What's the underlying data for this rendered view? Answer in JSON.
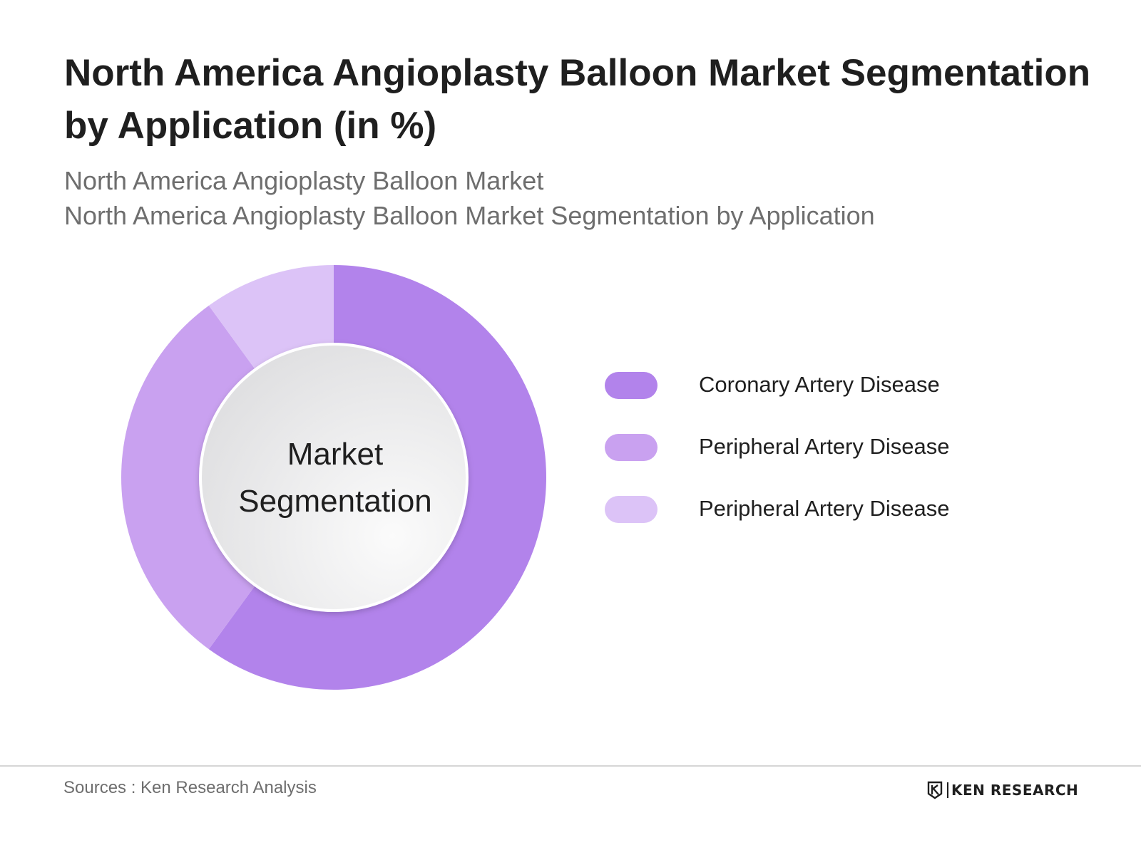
{
  "title": "North America Angioplasty Balloon Market Segmentation by Application (in %)",
  "subtitle_1": "North America Angioplasty Balloon Market",
  "subtitle_2": "North America Angioplasty Balloon Market Segmentation by Application",
  "center_label_line1": "Market",
  "center_label_line2": "Segmentation",
  "chart_data": {
    "type": "pie",
    "variant": "donut",
    "title": "North America Angioplasty Balloon Market Segmentation by Application (in %)",
    "categories": [
      "Coronary Artery Disease",
      "Peripheral Artery Disease",
      "Peripheral Artery Disease"
    ],
    "values": [
      60,
      30,
      10
    ],
    "colors": [
      "#b283eb",
      "#c9a1f0",
      "#dcc3f7"
    ],
    "start_angle_deg": 0,
    "direction": "clockwise",
    "legend_position": "right"
  },
  "footer": {
    "sources": "Sources : Ken Research Analysis",
    "logo_text": "KEN RESEARCH"
  }
}
